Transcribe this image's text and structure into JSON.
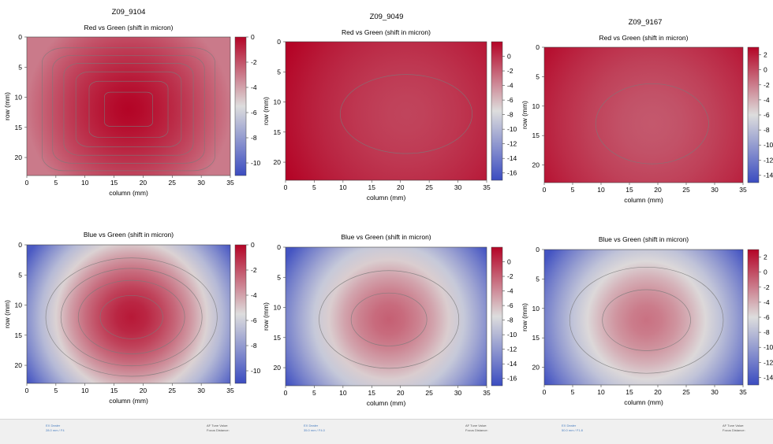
{
  "colors": {
    "cmap_low": "#3b4cc0",
    "cmap_mid": "#dddddd",
    "cmap_high": "#b40426",
    "contour": "#7a7a7a"
  },
  "columns": [
    {
      "title": "Z09_9104"
    },
    {
      "title": "Z09_9049"
    },
    {
      "title": "Z09_9167"
    }
  ],
  "chart_data": [
    {
      "type": "heatmap",
      "column": 0,
      "row": 0,
      "title": "Red vs Green (shift in micron)",
      "xlabel": "column (mm)",
      "ylabel": "row (mm)",
      "xlim": [
        0,
        35
      ],
      "ylim": [
        23,
        0
      ],
      "xticks": [
        0,
        5,
        10,
        15,
        20,
        25,
        30,
        35
      ],
      "yticks": [
        0,
        5,
        10,
        15,
        20
      ],
      "colorbar": {
        "min": -11,
        "max": 0,
        "ticks": [
          0,
          -2,
          -4,
          -6,
          -8,
          -10
        ]
      },
      "field": {
        "center_x": 17.5,
        "center_y": 12,
        "center_value": 0,
        "edge_value": -3,
        "shape": "square"
      },
      "contour_levels": [
        -3,
        -2.5,
        -2,
        -1.5,
        -1,
        -0.5
      ]
    },
    {
      "type": "heatmap",
      "column": 1,
      "row": 0,
      "title": "Red vs Green (shift in micron)",
      "xlabel": "column (mm)",
      "ylabel": "row (mm)",
      "xlim": [
        0,
        35
      ],
      "ylim": [
        23,
        0
      ],
      "xticks": [
        0,
        5,
        10,
        15,
        20,
        25,
        30,
        35
      ],
      "yticks": [
        0,
        5,
        10,
        15,
        20
      ],
      "colorbar": {
        "min": -17,
        "max": 2,
        "ticks": [
          0,
          -2,
          -4,
          -6,
          -8,
          -10,
          -12,
          -14,
          -16
        ]
      },
      "field": {
        "center_x": 21,
        "center_y": 12,
        "center_value": -0.8,
        "edge_value": 2,
        "shape": "round"
      },
      "contour_levels": [
        0.3
      ]
    },
    {
      "type": "heatmap",
      "column": 2,
      "row": 0,
      "title": "Red vs Green (shift in micron)",
      "xlabel": "column (mm)",
      "ylabel": "row (mm)",
      "xlim": [
        0,
        35
      ],
      "ylim": [
        23,
        0
      ],
      "xticks": [
        0,
        5,
        10,
        15,
        20,
        25,
        30,
        35
      ],
      "yticks": [
        0,
        5,
        10,
        15,
        20
      ],
      "colorbar": {
        "min": -15,
        "max": 3,
        "ticks": [
          2,
          0,
          -2,
          -4,
          -6,
          -8,
          -10,
          -12,
          -14
        ]
      },
      "field": {
        "center_x": 19,
        "center_y": 13,
        "center_value": -0.5,
        "edge_value": 2.5,
        "shape": "round"
      },
      "contour_levels": [
        0.6
      ]
    },
    {
      "type": "heatmap",
      "column": 0,
      "row": 1,
      "title": "Blue vs Green (shift in micron)",
      "xlabel": "column (mm)",
      "ylabel": "row (mm)",
      "xlim": [
        0,
        35
      ],
      "ylim": [
        23,
        0
      ],
      "xticks": [
        0,
        5,
        10,
        15,
        20,
        25,
        30,
        35
      ],
      "yticks": [
        0,
        5,
        10,
        15,
        20
      ],
      "colorbar": {
        "min": -11,
        "max": 0,
        "ticks": [
          0,
          -2,
          -4,
          -6,
          -8,
          -10
        ]
      },
      "field": {
        "center_x": 18,
        "center_y": 12,
        "center_value": -0.5,
        "edge_value": -10.5,
        "shape": "round"
      },
      "contour_levels": [
        -8,
        -6,
        -4,
        -2
      ]
    },
    {
      "type": "heatmap",
      "column": 1,
      "row": 1,
      "title": "Blue vs Green (shift in micron)",
      "xlabel": "column (mm)",
      "ylabel": "row (mm)",
      "xlim": [
        0,
        35
      ],
      "ylim": [
        23,
        0
      ],
      "xticks": [
        0,
        5,
        10,
        15,
        20,
        25,
        30,
        35
      ],
      "yticks": [
        0,
        5,
        10,
        15,
        20
      ],
      "colorbar": {
        "min": -17,
        "max": 2,
        "ticks": [
          0,
          -2,
          -4,
          -6,
          -8,
          -10,
          -12,
          -14,
          -16
        ]
      },
      "field": {
        "center_x": 18,
        "center_y": 12,
        "center_value": -2,
        "edge_value": -16.5,
        "shape": "round"
      },
      "contour_levels": [
        -10,
        -5
      ]
    },
    {
      "type": "heatmap",
      "column": 2,
      "row": 1,
      "title": "Blue vs Green (shift in micron)",
      "xlabel": "column (mm)",
      "ylabel": "row (mm)",
      "xlim": [
        0,
        35
      ],
      "ylim": [
        23,
        0
      ],
      "xticks": [
        0,
        5,
        10,
        15,
        20,
        25,
        30,
        35
      ],
      "yticks": [
        0,
        5,
        10,
        15,
        20
      ],
      "colorbar": {
        "min": -15,
        "max": 3,
        "ticks": [
          2,
          0,
          -2,
          -4,
          -6,
          -8,
          -10,
          -12,
          -14
        ]
      },
      "field": {
        "center_x": 18,
        "center_y": 12,
        "center_value": -1.5,
        "edge_value": -14.5,
        "shape": "round"
      },
      "contour_levels": [
        -10,
        -5
      ]
    }
  ],
  "footer": [
    {
      "lens": "EX Dealer",
      "focal": "28.0 mm / F4",
      "af_label": "AF Tune Value:",
      "focus_label": "Focus Distance:"
    },
    {
      "lens": "EX Dealer",
      "focal": "35.0 mm / F4.0",
      "af_label": "AF Tune Value:",
      "focus_label": "Focus Distance:"
    },
    {
      "lens": "EX Dealer",
      "focal": "50.0 mm / F1.8",
      "af_label": "AF Tune Value:",
      "focus_label": "Focus Distance:"
    }
  ]
}
